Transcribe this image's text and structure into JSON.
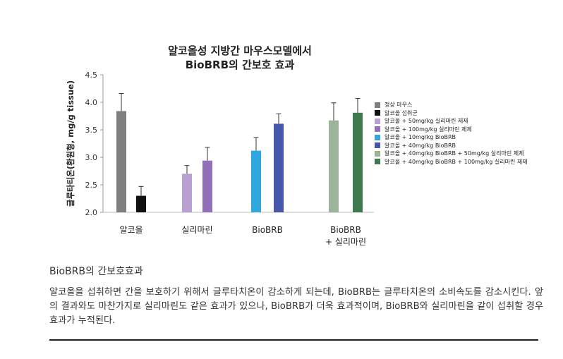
{
  "chart_data": {
    "type": "bar",
    "title": "알코올성 지방간 마우스모델에서",
    "subtitle": "BioBRB의 간보호 효과",
    "ylabel": "글루타티온(환원형, mg/g tissue)",
    "xlabel": "",
    "ylim": [
      2.0,
      4.5
    ],
    "yticks": [
      "2.0",
      "2.5",
      "3.0",
      "3.5",
      "4.0",
      "4.5"
    ],
    "grid": false,
    "legend_position": "right",
    "groups": [
      {
        "label": "알코올",
        "bars": [
          0,
          1
        ]
      },
      {
        "label": "실리마린",
        "bars": [
          2,
          3
        ]
      },
      {
        "label": "BioBRB",
        "bars": [
          4,
          5
        ]
      },
      {
        "label": "BioBRB\n+ 실리마린",
        "bars": [
          6,
          7
        ]
      }
    ],
    "series": [
      {
        "name": "정상 마우스",
        "value": 3.84,
        "error": 0.32,
        "color": "#7f7f7f"
      },
      {
        "name": "알코올 섭취군",
        "value": 2.3,
        "error": 0.17,
        "color": "#111111"
      },
      {
        "name": "알코올 + 50mg/kg 실리마린 제제",
        "value": 2.7,
        "error": 0.15,
        "color": "#b8a0d2"
      },
      {
        "name": "알코올 + 100mg/kg 실리마린 제제",
        "value": 2.94,
        "error": 0.24,
        "color": "#9170b9"
      },
      {
        "name": "알코올 + 10mg/kg BioBRB",
        "value": 3.12,
        "error": 0.24,
        "color": "#2fa8e0"
      },
      {
        "name": "알코올 + 40mg/kg BioBRB",
        "value": 3.61,
        "error": 0.18,
        "color": "#4758ac"
      },
      {
        "name": "알코올 + 40mg/kg BioBRB + 50mg/kg 실리마린 제제",
        "value": 3.67,
        "error": 0.32,
        "color": "#9bb49a"
      },
      {
        "name": "알코올 + 40mg/kg BioBRB + 100mg/kg 실리마린 제제",
        "value": 3.81,
        "error": 0.26,
        "color": "#3f7a4e"
      }
    ]
  },
  "caption": {
    "title": "BioBRB의 간보호효과",
    "body": "알코올을 섭취하면 간을 보호하기 위해서 글루타치온이 감소하게 되는데, BioBRB는 글루타치온의 소비속도를 감소시킨다. 앞의 결과와도 마찬가지로 실리마린도 같은 효과가 있으나, BioBRB가 더욱 효과적이며, BioBRB와 실리마린을 같이 섭취할 경우 효과가 누적된다."
  }
}
